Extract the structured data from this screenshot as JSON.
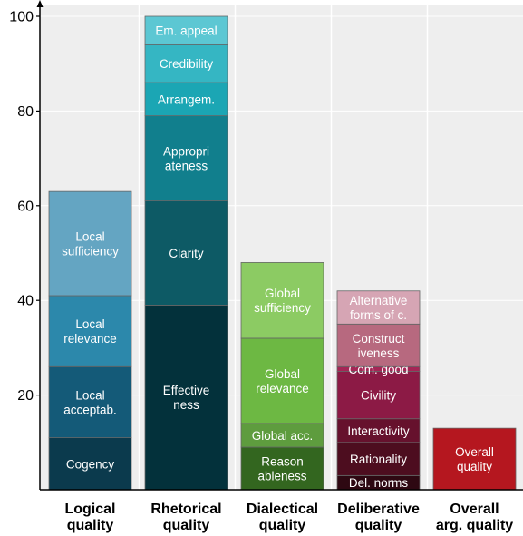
{
  "chart_data": {
    "type": "bar",
    "stacked": true,
    "ylim": [
      0,
      100
    ],
    "yticks": [
      20,
      40,
      60,
      80,
      100
    ],
    "grid": true,
    "background": "#eeeeee",
    "categories": [
      {
        "name": "Logical quality",
        "label_lines": [
          "Logical",
          "quality"
        ],
        "segments": [
          {
            "label": "Cogency",
            "label_lines": [
              "Cogency"
            ],
            "value": 11,
            "color": "#0b3a4d"
          },
          {
            "label": "Local acceptab.",
            "label_lines": [
              "Local",
              "acceptab."
            ],
            "value": 15,
            "color": "#145a78"
          },
          {
            "label": "Local relevance",
            "label_lines": [
              "Local",
              "relevance"
            ],
            "value": 15,
            "color": "#2c88ab"
          },
          {
            "label": "Local sufficiency",
            "label_lines": [
              "Local",
              "sufficiency"
            ],
            "value": 22,
            "color": "#64a5c2"
          }
        ]
      },
      {
        "name": "Rhetorical quality",
        "label_lines": [
          "Rhetorical",
          "quality"
        ],
        "segments": [
          {
            "label": "Effective ness",
            "label_lines": [
              "Effective",
              "ness"
            ],
            "value": 39,
            "color": "#03313b"
          },
          {
            "label": "Clarity",
            "label_lines": [
              "Clarity"
            ],
            "value": 22,
            "color": "#0d5a65"
          },
          {
            "label": "Appropri ateness",
            "label_lines": [
              "Appropri",
              "ateness"
            ],
            "value": 18,
            "color": "#117f8d"
          },
          {
            "label": "Arrangem.",
            "label_lines": [
              "Arrangem."
            ],
            "value": 7,
            "color": "#1ba6b4"
          },
          {
            "label": "Credibility",
            "label_lines": [
              "Credibility"
            ],
            "value": 8,
            "color": "#35b6c3"
          },
          {
            "label": "Em. appeal",
            "label_lines": [
              "Em. appeal"
            ],
            "value": 6,
            "color": "#5cc7d3"
          }
        ]
      },
      {
        "name": "Dialectical quality",
        "label_lines": [
          "Dialectical",
          "quality"
        ],
        "segments": [
          {
            "label": "Reason ableness",
            "label_lines": [
              "Reason",
              "ableness"
            ],
            "value": 9,
            "color": "#33661f"
          },
          {
            "label": "Global acc.",
            "label_lines": [
              "Global acc."
            ],
            "value": 5,
            "color": "#5e9c3e"
          },
          {
            "label": "Global relevance",
            "label_lines": [
              "Global",
              "relevance"
            ],
            "value": 18,
            "color": "#6db843"
          },
          {
            "label": "Global sufficiency",
            "label_lines": [
              "Global",
              "sufficiency"
            ],
            "value": 16,
            "color": "#8ccb63"
          }
        ]
      },
      {
        "name": "Deliberative quality",
        "label_lines": [
          "Deliberative",
          "quality"
        ],
        "segments": [
          {
            "label": "Del. norms",
            "label_lines": [
              "Del. norms"
            ],
            "value": 3,
            "color": "#2e0812"
          },
          {
            "label": "Rationality",
            "label_lines": [
              "Rationality"
            ],
            "value": 7,
            "color": "#4d0d1f"
          },
          {
            "label": "Interactivity",
            "label_lines": [
              "Interactivity"
            ],
            "value": 5,
            "color": "#66112d"
          },
          {
            "label": "Civility",
            "label_lines": [
              "Civility"
            ],
            "value": 10,
            "color": "#8c1a45"
          },
          {
            "label": "Com. good",
            "label_lines": [
              "Com. good"
            ],
            "value": 1,
            "color": "#a52656"
          },
          {
            "label": "Construct iveness",
            "label_lines": [
              "Construct",
              "iveness"
            ],
            "value": 9,
            "color": "#b7697f"
          },
          {
            "label": "Alternative forms of c.",
            "label_lines": [
              "Alternative",
              "forms of c."
            ],
            "value": 7,
            "color": "#d6a5b4"
          }
        ]
      },
      {
        "name": "Overall arg. quality",
        "label_lines": [
          "Overall",
          "arg. quality"
        ],
        "segments": [
          {
            "label": "Overall quality",
            "label_lines": [
              "Overall",
              "quality"
            ],
            "value": 13,
            "color": "#b5171f"
          }
        ]
      }
    ]
  }
}
